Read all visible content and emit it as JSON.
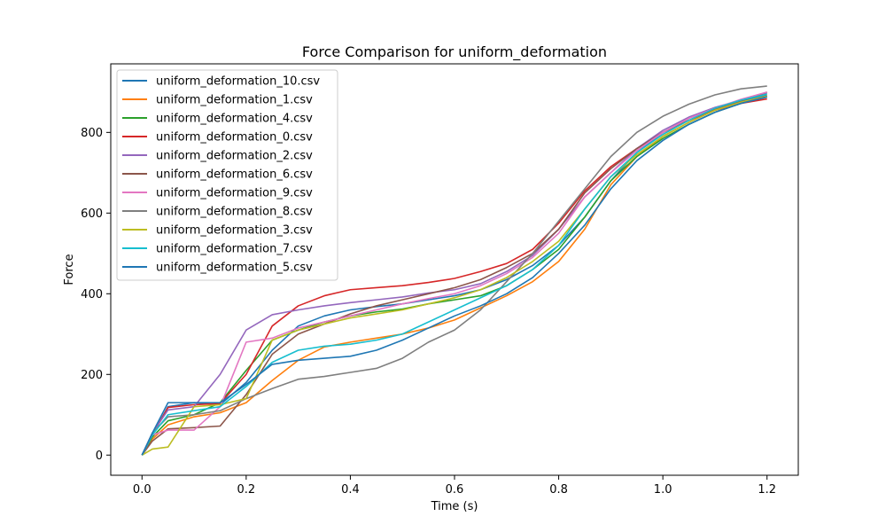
{
  "chart_data": {
    "type": "line",
    "title": "Force Comparison for uniform_deformation",
    "xlabel": "Time (s)",
    "ylabel": "Force",
    "xlim": [
      -0.06,
      1.26
    ],
    "ylim": [
      -50,
      970
    ],
    "xticks": [
      0.0,
      0.2,
      0.4,
      0.6,
      0.8,
      1.0,
      1.2
    ],
    "xtick_labels": [
      "0.0",
      "0.2",
      "0.4",
      "0.6",
      "0.8",
      "1.0",
      "1.2"
    ],
    "yticks": [
      0,
      200,
      400,
      600,
      800
    ],
    "ytick_labels": [
      "0",
      "200",
      "400",
      "600",
      "800"
    ],
    "grid": false,
    "legend_position": "upper-left",
    "x": [
      0.0,
      0.02,
      0.05,
      0.1,
      0.15,
      0.2,
      0.25,
      0.3,
      0.35,
      0.4,
      0.45,
      0.5,
      0.55,
      0.6,
      0.65,
      0.7,
      0.75,
      0.8,
      0.85,
      0.9,
      0.95,
      1.0,
      1.05,
      1.1,
      1.15,
      1.2
    ],
    "series": [
      {
        "name": "uniform_deformation_10.csv",
        "color": "#1f77b4",
        "values": [
          0,
          50,
          120,
          130,
          125,
          180,
          260,
          320,
          345,
          360,
          368,
          375,
          385,
          395,
          410,
          435,
          470,
          520,
          590,
          680,
          750,
          800,
          835,
          860,
          878,
          892
        ]
      },
      {
        "name": "uniform_deformation_1.csv",
        "color": "#ff7f0e",
        "values": [
          0,
          40,
          75,
          95,
          105,
          130,
          185,
          235,
          268,
          280,
          290,
          300,
          315,
          335,
          365,
          395,
          430,
          480,
          560,
          670,
          740,
          790,
          825,
          855,
          875,
          890
        ]
      },
      {
        "name": "uniform_deformation_4.csv",
        "color": "#2ca02c",
        "values": [
          0,
          45,
          85,
          100,
          130,
          210,
          285,
          310,
          330,
          345,
          355,
          362,
          375,
          385,
          395,
          420,
          460,
          510,
          590,
          680,
          740,
          785,
          820,
          850,
          872,
          888
        ]
      },
      {
        "name": "uniform_deformation_0.csv",
        "color": "#d62728",
        "values": [
          0,
          50,
          118,
          125,
          128,
          200,
          320,
          370,
          395,
          410,
          415,
          420,
          428,
          438,
          455,
          475,
          510,
          575,
          655,
          715,
          760,
          800,
          830,
          855,
          872,
          883
        ]
      },
      {
        "name": "uniform_deformation_2.csv",
        "color": "#9467bd",
        "values": [
          0,
          55,
          112,
          120,
          200,
          310,
          348,
          360,
          370,
          378,
          385,
          392,
          402,
          410,
          425,
          455,
          495,
          560,
          640,
          700,
          760,
          805,
          838,
          862,
          880,
          898
        ]
      },
      {
        "name": "uniform_deformation_6.csv",
        "color": "#8c564b",
        "values": [
          0,
          35,
          65,
          68,
          72,
          150,
          250,
          300,
          325,
          350,
          370,
          385,
          400,
          415,
          435,
          465,
          500,
          560,
          650,
          710,
          760,
          800,
          830,
          858,
          878,
          900
        ]
      },
      {
        "name": "uniform_deformation_9.csv",
        "color": "#e377c2",
        "values": [
          0,
          50,
          62,
          62,
          120,
          280,
          290,
          315,
          330,
          345,
          360,
          375,
          388,
          400,
          420,
          450,
          490,
          550,
          640,
          700,
          755,
          800,
          835,
          860,
          882,
          900
        ]
      },
      {
        "name": "uniform_deformation_8.csv",
        "color": "#7f7f7f",
        "values": [
          0,
          55,
          95,
          100,
          110,
          140,
          165,
          188,
          195,
          205,
          215,
          240,
          280,
          310,
          360,
          430,
          500,
          580,
          660,
          740,
          800,
          840,
          870,
          893,
          908,
          915
        ]
      },
      {
        "name": "uniform_deformation_3.csv",
        "color": "#bcbd22",
        "values": [
          0,
          15,
          20,
          120,
          125,
          140,
          285,
          310,
          325,
          340,
          350,
          360,
          375,
          390,
          410,
          440,
          480,
          530,
          610,
          690,
          745,
          790,
          825,
          855,
          875,
          890
        ]
      },
      {
        "name": "uniform_deformation_7.csv",
        "color": "#17becf",
        "values": [
          0,
          50,
          100,
          110,
          120,
          170,
          230,
          260,
          270,
          275,
          285,
          300,
          330,
          360,
          390,
          420,
          460,
          520,
          610,
          690,
          750,
          795,
          830,
          860,
          880,
          895
        ]
      },
      {
        "name": "uniform_deformation_5.csv",
        "color": "#1f77b4",
        "values": [
          0,
          55,
          130,
          130,
          130,
          175,
          225,
          235,
          240,
          245,
          260,
          285,
          315,
          345,
          370,
          400,
          440,
          500,
          570,
          660,
          730,
          780,
          820,
          850,
          872,
          888
        ]
      }
    ]
  }
}
